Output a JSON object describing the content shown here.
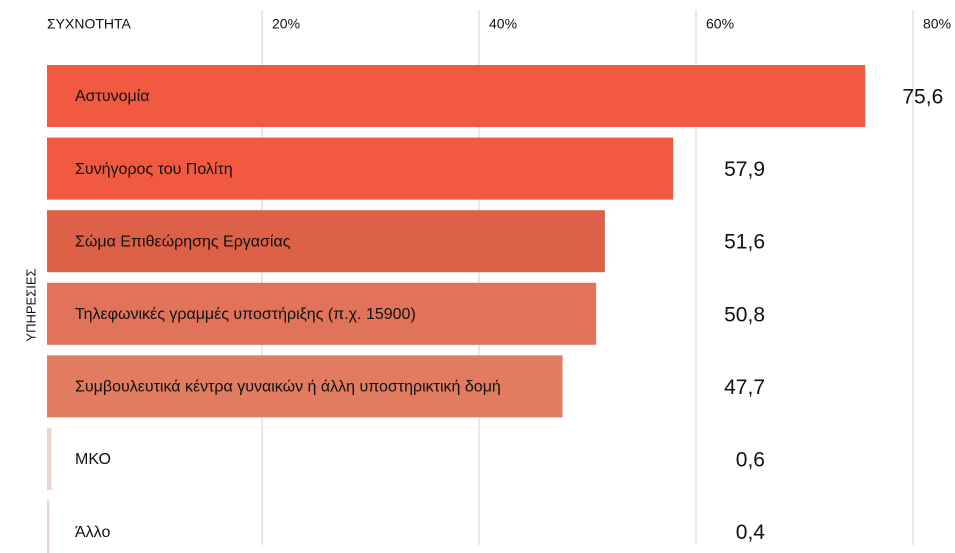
{
  "chart_data": {
    "type": "hbar",
    "xlabel": "ΣΥΧΝΟΤΗΤΑ",
    "ylabel": "ΥΠΗΡΕΣΙΕΣ",
    "categories": [
      "Αστυνομία",
      "Συνήγορος του Πολίτη",
      "Σώμα Επιθεώρησης Εργασίας",
      "Τηλεφωνικές γραμμές υποστήριξης (π.χ. 15900)",
      "Συμβουλευτικά κέντρα γυναικών ή άλλη υποστηρικτική δομή",
      "ΜΚΟ",
      "Άλλο"
    ],
    "values": [
      75.6,
      57.9,
      51.6,
      50.8,
      47.7,
      0.6,
      0.4
    ],
    "value_labels": [
      "75,6",
      "57,9",
      "51,6",
      "50,8",
      "47,7",
      "0,6",
      "0,4"
    ],
    "colors": [
      "#f15a40",
      "#f15a40",
      "#dc6146",
      "#e0735a",
      "#e17c60",
      "#ead6d1",
      "#ead6d1"
    ],
    "xlim": [
      0,
      80
    ],
    "xticks": [
      {
        "value": 20,
        "label": "20%"
      },
      {
        "value": 40,
        "label": "40%"
      },
      {
        "value": 60,
        "label": "60%"
      },
      {
        "value": 80,
        "label": "80%"
      }
    ],
    "grid": true
  }
}
